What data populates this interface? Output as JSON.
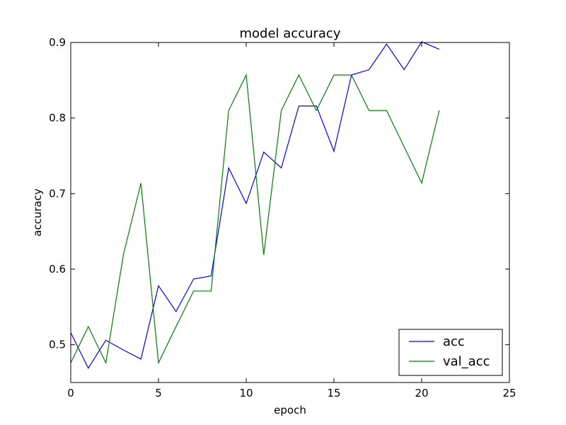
{
  "chart_data": {
    "type": "line",
    "title": "model accuracy",
    "xlabel": "epoch",
    "ylabel": "accuracy",
    "xlim": [
      0,
      25
    ],
    "ylim": [
      0.45,
      0.9
    ],
    "xticks": [
      0,
      5,
      10,
      15,
      20,
      25
    ],
    "yticks": [
      0.5,
      0.6,
      0.7,
      0.8,
      0.9
    ],
    "xtick_labels": [
      "0",
      "5",
      "10",
      "15",
      "20",
      "25"
    ],
    "ytick_labels": [
      "0.5",
      "0.6",
      "0.7",
      "0.8",
      "0.9"
    ],
    "grid": false,
    "legend_position": "bottom-right",
    "x": [
      0,
      1,
      2,
      3,
      4,
      5,
      6,
      7,
      8,
      9,
      10,
      11,
      12,
      13,
      14,
      15,
      16,
      17,
      18,
      19,
      20,
      21
    ],
    "series": [
      {
        "name": "acc",
        "color": "#0000ff",
        "values": [
          0.516,
          0.469,
          0.506,
          0.493,
          0.481,
          0.578,
          0.544,
          0.587,
          0.591,
          0.734,
          0.687,
          0.755,
          0.734,
          0.816,
          0.816,
          0.756,
          0.857,
          0.864,
          0.898,
          0.864,
          0.901,
          0.891
        ]
      },
      {
        "name": "val_acc",
        "color": "#008000",
        "values": [
          0.476,
          0.524,
          0.476,
          0.619,
          0.714,
          0.476,
          0.524,
          0.571,
          0.571,
          0.81,
          0.857,
          0.619,
          0.81,
          0.857,
          0.81,
          0.857,
          0.857,
          0.81,
          0.81,
          0.762,
          0.714,
          0.81
        ]
      }
    ]
  }
}
